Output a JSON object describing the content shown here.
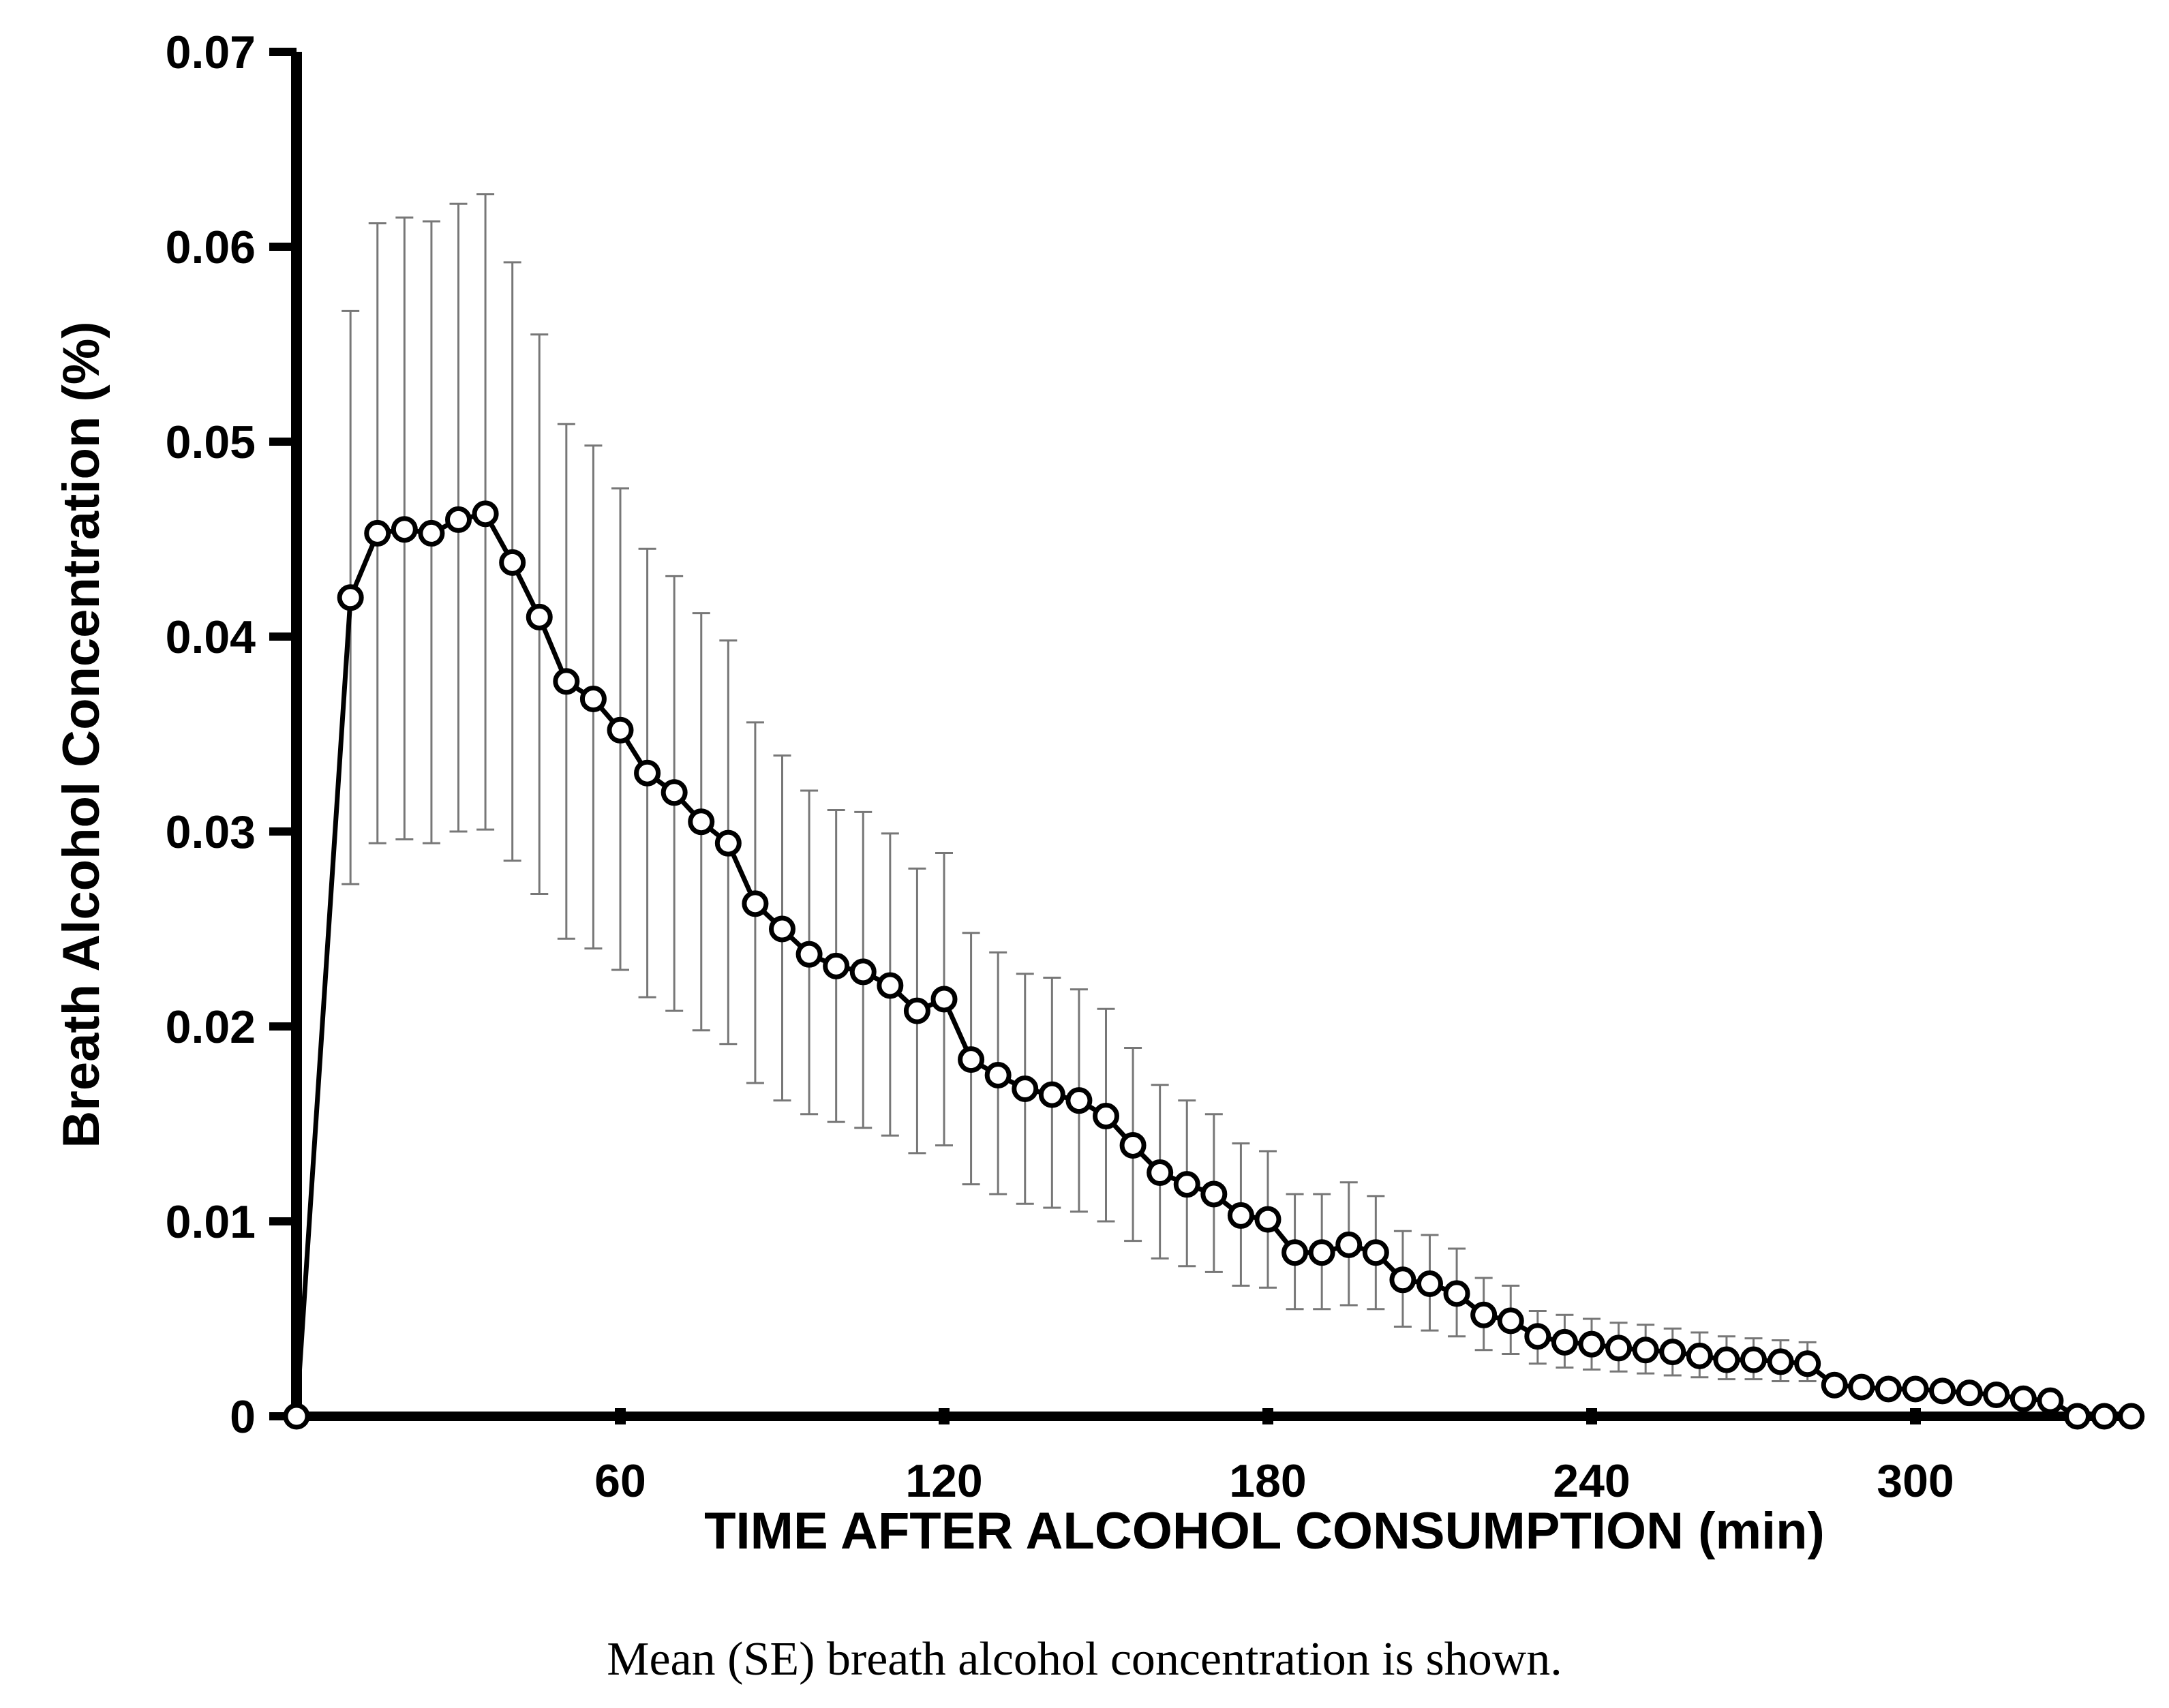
{
  "chart_data": {
    "type": "line",
    "title": "",
    "xlabel": "TIME AFTER ALCOHOL CONSUMPTION (min)",
    "ylabel": "Breath Alcohol Concentration (%)",
    "xlim": [
      0,
      325
    ],
    "ylim": [
      0,
      0.07
    ],
    "x_ticks": [
      60,
      120,
      180,
      240,
      300
    ],
    "x_tick_labels": [
      "60",
      "120",
      "180",
      "240",
      "300"
    ],
    "y_ticks": [
      0,
      0.01,
      0.02,
      0.03,
      0.04,
      0.05,
      0.06,
      0.07
    ],
    "y_tick_labels": [
      "0",
      "0.01",
      "0.02",
      "0.03",
      "0.04",
      "0.05",
      "0.06",
      "0.07"
    ],
    "grid": false,
    "error_bars": "SE",
    "series": [
      {
        "name": "Mean breath alcohol concentration",
        "x": [
          0,
          10,
          15,
          20,
          25,
          30,
          35,
          40,
          45,
          50,
          55,
          60,
          65,
          70,
          75,
          80,
          85,
          90,
          95,
          100,
          105,
          110,
          115,
          120,
          125,
          130,
          135,
          140,
          145,
          150,
          155,
          160,
          165,
          170,
          175,
          180,
          185,
          190,
          195,
          200,
          205,
          210,
          215,
          220,
          225,
          230,
          235,
          240,
          245,
          250,
          255,
          260,
          265,
          270,
          275,
          280,
          285,
          290,
          295,
          300,
          305,
          310,
          315,
          320,
          325,
          330,
          335,
          340
        ],
        "values": [
          0,
          0.042,
          0.0453,
          0.0455,
          0.0453,
          0.046,
          0.0463,
          0.0438,
          0.041,
          0.0377,
          0.0368,
          0.0352,
          0.033,
          0.032,
          0.0305,
          0.0294,
          0.0263,
          0.025,
          0.0237,
          0.0231,
          0.0228,
          0.0221,
          0.0208,
          0.0214,
          0.0183,
          0.0175,
          0.0168,
          0.0165,
          0.0162,
          0.0154,
          0.0139,
          0.0125,
          0.0119,
          0.0114,
          0.0103,
          0.0101,
          0.0084,
          0.0084,
          0.0088,
          0.0084,
          0.007,
          0.0068,
          0.0063,
          0.0052,
          0.0049,
          0.0041,
          0.0038,
          0.0037,
          0.0035,
          0.0034,
          0.0033,
          0.0031,
          0.0029,
          0.0029,
          0.0028,
          0.0027,
          0.0016,
          0.0015,
          0.0014,
          0.0014,
          0.0013,
          0.0012,
          0.0011,
          0.0009,
          0.0008,
          0.0,
          0.0,
          0.0
        ],
        "se_upper": [
          null,
          0.0567,
          0.0612,
          0.0615,
          0.0613,
          0.0622,
          0.0627,
          0.0592,
          0.0555,
          0.0509,
          0.0498,
          0.0476,
          0.0445,
          0.0431,
          0.0412,
          0.0398,
          0.0356,
          0.0339,
          0.0321,
          0.0311,
          0.031,
          0.0299,
          0.0281,
          0.0289,
          0.0248,
          0.0238,
          0.0227,
          0.0225,
          0.0219,
          0.0209,
          0.0189,
          0.017,
          0.0162,
          0.0155,
          0.014,
          0.0136,
          0.0114,
          0.0114,
          0.012,
          0.0113,
          0.0095,
          0.0093,
          0.0086,
          0.0071,
          0.0067,
          0.0054,
          0.0052,
          0.005,
          0.0048,
          0.0047,
          0.0045,
          0.0043,
          0.0041,
          0.004,
          0.0039,
          0.0038,
          null,
          null,
          null,
          null,
          null,
          null,
          null,
          null,
          null,
          null,
          null,
          null
        ],
        "se_lower": [
          null,
          0.0273,
          0.0294,
          0.0296,
          0.0294,
          0.03,
          0.0301,
          0.0285,
          0.0268,
          0.0245,
          0.024,
          0.0229,
          0.0215,
          0.0208,
          0.0198,
          0.0191,
          0.0171,
          0.0162,
          0.0155,
          0.0151,
          0.0148,
          0.0144,
          0.0135,
          0.0139,
          0.0119,
          0.0114,
          0.0109,
          0.0107,
          0.0105,
          0.01,
          0.009,
          0.0081,
          0.0077,
          0.0074,
          0.0067,
          0.0066,
          0.0055,
          0.0055,
          0.0057,
          0.0055,
          0.0046,
          0.0044,
          0.0041,
          0.0034,
          0.0032,
          0.0027,
          0.0025,
          0.0024,
          0.0023,
          0.0022,
          0.0021,
          0.002,
          0.0019,
          0.0019,
          0.0018,
          0.0018,
          null,
          null,
          null,
          null,
          null,
          null,
          null,
          null,
          null,
          null,
          null,
          null
        ]
      }
    ]
  },
  "caption": "Mean (SE) breath alcohol concentration is shown."
}
